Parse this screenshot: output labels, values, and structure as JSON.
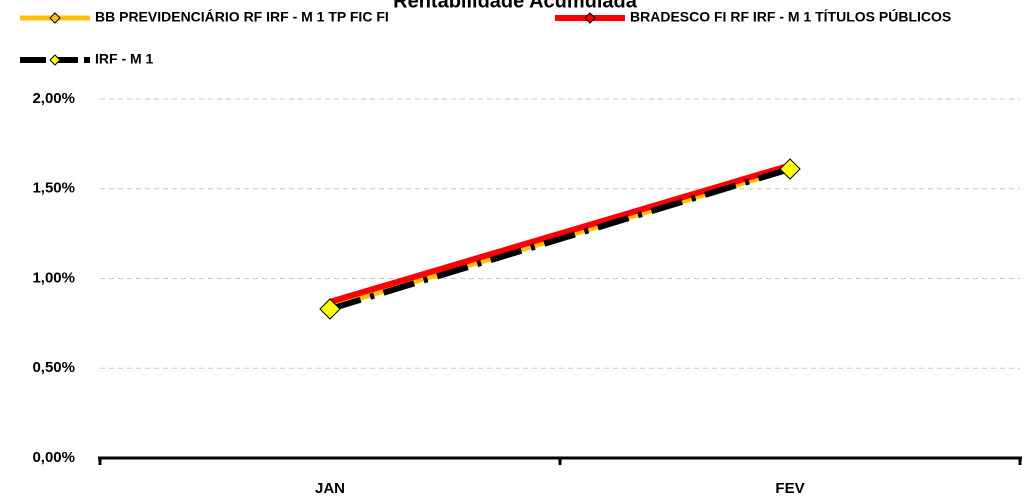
{
  "chart_data": {
    "type": "line",
    "title": "Rentabilidade Acumulada",
    "categories": [
      "JAN",
      "FEV"
    ],
    "series": [
      {
        "name": "BB PREVIDENCIÁRIO RF IRF - M 1 TP FIC FI",
        "color": "#ffc000",
        "values": [
          0.84,
          1.61
        ]
      },
      {
        "name": "BRADESCO FI RF IRF - M 1 TÍTULOS PÚBLICOS",
        "color": "#ff0000",
        "values": [
          0.87,
          1.63
        ]
      },
      {
        "name": "IRF - M 1",
        "color": "#000000",
        "values": [
          0.83,
          1.61
        ]
      }
    ],
    "ylim": [
      0,
      2
    ],
    "yticks": [
      {
        "value": 0,
        "label": "0,00%"
      },
      {
        "value": 0.5,
        "label": "0,50%"
      },
      {
        "value": 1,
        "label": "1,00%"
      },
      {
        "value": 1.5,
        "label": "1,50%"
      },
      {
        "value": 2,
        "label": "2,00%"
      }
    ],
    "grid": true
  }
}
